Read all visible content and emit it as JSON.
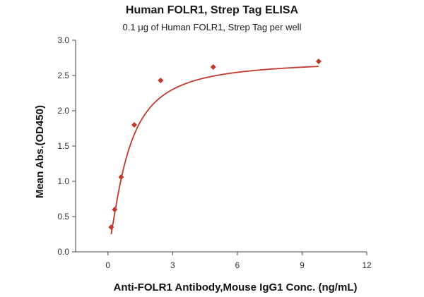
{
  "chart_data": {
    "type": "scatter",
    "title": "Human FOLR1, Strep Tag ELISA",
    "subtitle": "0.1 μg of Human FOLR1, Strep Tag per well",
    "xlabel": "Anti-FOLR1 Antibody,Mouse IgG1 Conc. (ng/mL)",
    "ylabel": "Mean Abs.(OD450)",
    "xlim": [
      -1.5,
      12
    ],
    "ylim": [
      0,
      3.0
    ],
    "x_ticks": [
      "0",
      "3",
      "6",
      "9",
      "12"
    ],
    "y_ticks": [
      "0.0",
      "0.5",
      "1.0",
      "1.5",
      "2.0",
      "2.5",
      "3.0"
    ],
    "x_tick_values": [
      0,
      3,
      6,
      9,
      12
    ],
    "y_tick_values": [
      0,
      0.5,
      1.0,
      1.5,
      2.0,
      2.5,
      3.0
    ],
    "marker_color": "#c0392b",
    "line_color": "#c0392b",
    "series": [
      {
        "x": [
          0.15,
          0.31,
          0.61,
          1.22,
          2.44,
          4.88,
          9.77
        ],
        "y": [
          0.35,
          0.6,
          1.06,
          1.8,
          2.43,
          2.62,
          2.7
        ]
      }
    ],
    "fit_curve": true,
    "grid": false
  }
}
